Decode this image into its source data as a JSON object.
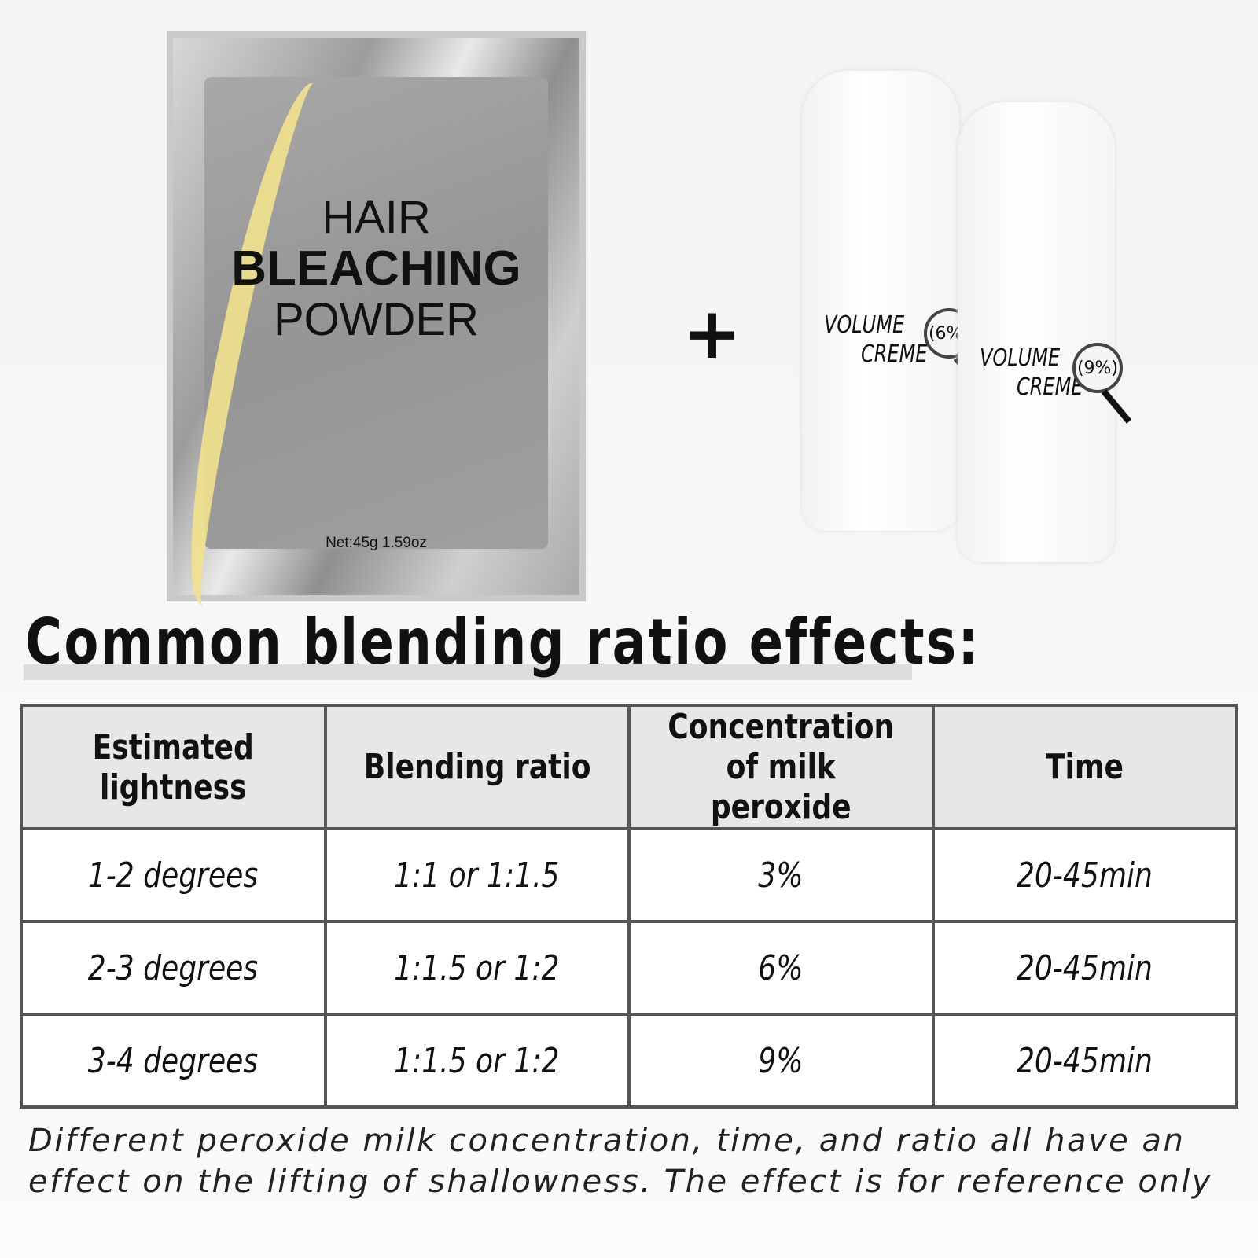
{
  "product": {
    "packet": {
      "lines": [
        "HAIR",
        "BLEACHING",
        "POWDER"
      ],
      "net": "Net:45g 1.59oz"
    },
    "bottles": [
      {
        "label": [
          "VOLUME",
          "CREME"
        ],
        "concentration": "(6%)"
      },
      {
        "label": [
          "VOLUME",
          "CREME"
        ],
        "concentration": "(9%)"
      }
    ]
  },
  "heading": "Common blending ratio effects:",
  "table": {
    "header": [
      "Estimated lightness",
      "Blending ratio",
      "Concentration of milk peroxide",
      "Time"
    ],
    "rows": [
      [
        "1-2 degrees",
        "1:1 or 1:1.5",
        "3%",
        "20-45min"
      ],
      [
        "2-3 degrees",
        "1:1.5 or 1:2",
        "6%",
        "20-45min"
      ],
      [
        "3-4 degrees",
        "1:1.5 or 1:2",
        "9%",
        "20-45min"
      ]
    ]
  },
  "note": "Different peroxide milk concentration, time, and ratio all have an effect on the lifting of shallowness. The effect is for reference only"
}
